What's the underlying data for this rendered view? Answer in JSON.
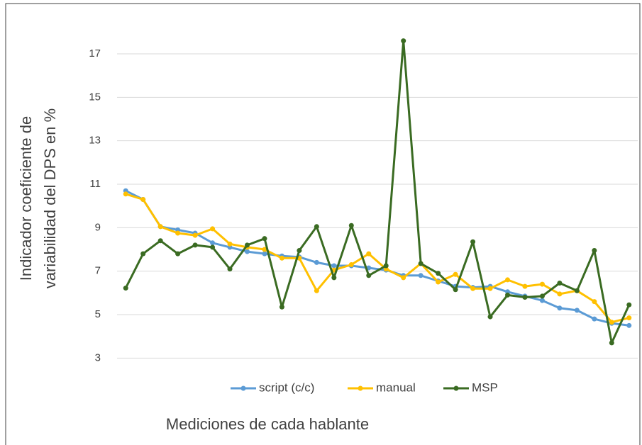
{
  "chart_data": {
    "type": "line",
    "y_label": [
      "Indicador coeficiente de",
      "variabilidad del DPS en %"
    ],
    "x_label": "Mediciones de cada hablante",
    "categories": [
      null,
      null,
      null,
      null,
      null,
      null,
      null,
      null,
      null,
      null,
      null,
      null,
      null,
      null,
      null,
      null,
      null,
      null,
      null,
      null,
      null,
      null,
      null,
      null,
      null,
      null,
      null,
      null,
      null,
      null
    ],
    "series": [
      {
        "name": "script (c/c)",
        "color": "#5b9bd5",
        "values": [
          10.7,
          10.3,
          9.05,
          8.9,
          8.75,
          8.3,
          8.1,
          7.9,
          7.8,
          7.7,
          7.65,
          7.4,
          7.25,
          7.25,
          7.15,
          7.05,
          6.8,
          6.8,
          6.55,
          6.3,
          6.25,
          6.3,
          6.05,
          5.85,
          5.65,
          5.3,
          5.2,
          4.8,
          4.6,
          4.5
        ]
      },
      {
        "name": "manual",
        "color": "#ffc000",
        "values": [
          10.55,
          10.3,
          9.05,
          8.75,
          8.65,
          8.95,
          8.25,
          8.1,
          8.0,
          7.6,
          7.6,
          6.1,
          7.05,
          7.3,
          7.8,
          7.1,
          6.7,
          7.35,
          6.5,
          6.85,
          6.2,
          6.2,
          6.6,
          6.3,
          6.4,
          5.95,
          6.1,
          5.6,
          4.65,
          4.85
        ]
      },
      {
        "name": "MSP",
        "color": "#3a6b22",
        "values": [
          6.22,
          7.8,
          8.4,
          7.8,
          8.2,
          8.1,
          7.1,
          8.2,
          8.5,
          5.35,
          7.95,
          9.05,
          6.7,
          9.1,
          6.8,
          7.25,
          17.6,
          7.35,
          6.9,
          6.15,
          8.35,
          4.9,
          5.9,
          5.8,
          5.85,
          6.45,
          6.1,
          7.95,
          3.7,
          5.45
        ]
      }
    ],
    "ylim": [
      2,
      18.5
    ],
    "yticks": [
      3,
      5,
      7,
      9,
      11,
      13,
      15,
      17
    ],
    "grid": true
  }
}
